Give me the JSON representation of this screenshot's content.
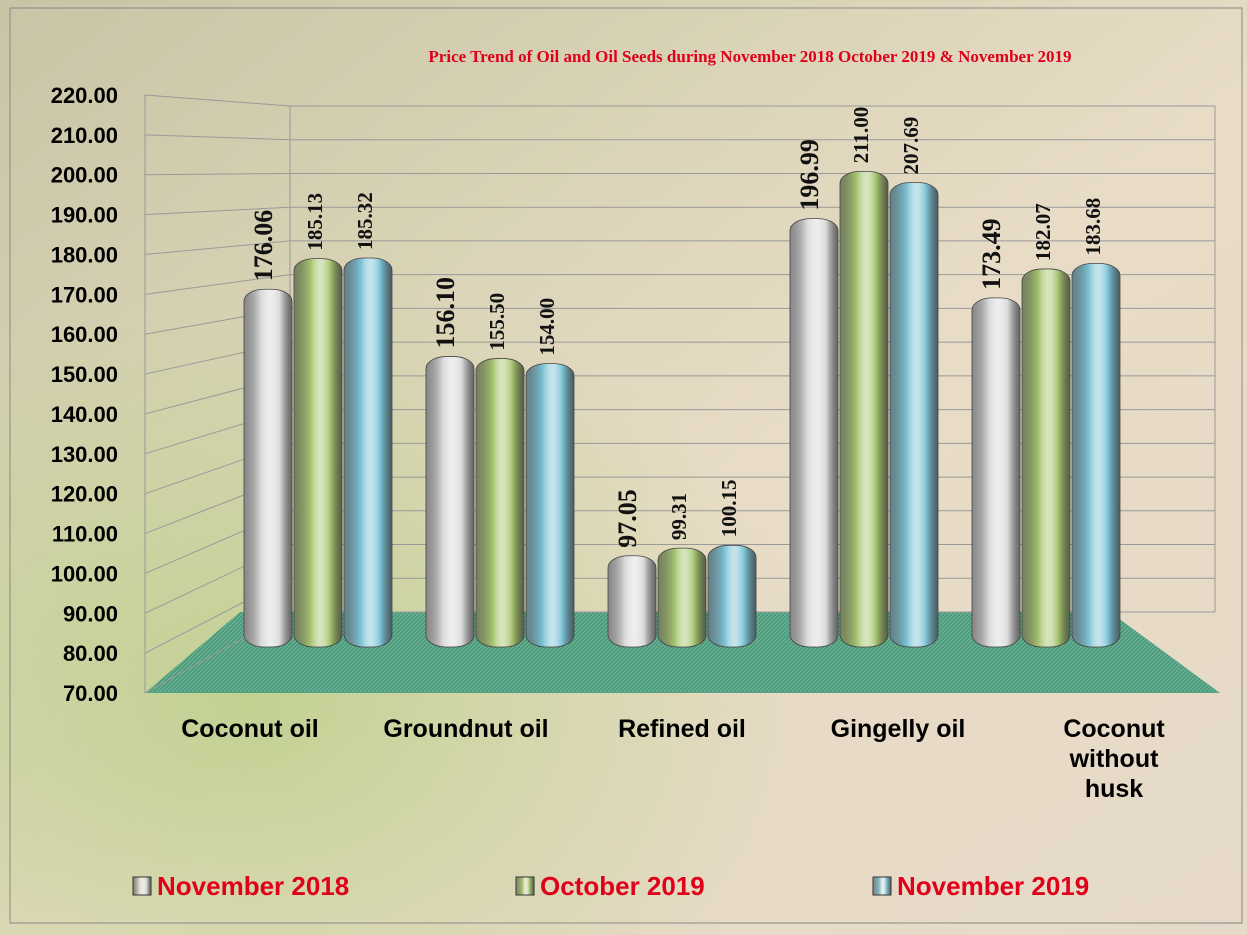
{
  "chart_data": {
    "type": "bar",
    "title": "Price Trend of Oil and Oil Seeds during  November  2018  October 2019 &  November 2019",
    "categories": [
      "Coconut oil",
      "Groundnut oil",
      "Refined oil",
      "Gingelly oil",
      "Coconut without husk"
    ],
    "series": [
      {
        "name": "November 2018",
        "color": "#d8d8d8",
        "values": [
          176.06,
          156.1,
          97.05,
          196.99,
          173.49
        ],
        "value_labels": [
          "176.06",
          "156.10",
          "97.05",
          "196.99",
          "173.49"
        ]
      },
      {
        "name": "October 2019",
        "color": "#a6c46e",
        "values": [
          185.13,
          155.5,
          99.31,
          211.0,
          182.07
        ],
        "value_labels": [
          "185.13",
          "155.50",
          "99.31",
          "211.00",
          "182.07"
        ]
      },
      {
        "name": "November 2019",
        "color": "#7cc3d6",
        "values": [
          185.32,
          154.0,
          100.15,
          207.69,
          183.68
        ],
        "value_labels": [
          "185.32",
          "154.00",
          "100.15",
          "207.69",
          "183.68"
        ]
      }
    ],
    "ylim": [
      70,
      220
    ],
    "yticks": [
      {
        "value": 70,
        "label": "70.00"
      },
      {
        "value": 80,
        "label": "80.00"
      },
      {
        "value": 90,
        "label": "90.00"
      },
      {
        "value": 100,
        "label": "100.00"
      },
      {
        "value": 110,
        "label": "110.00"
      },
      {
        "value": 120,
        "label": "120.00"
      },
      {
        "value": 130,
        "label": "130.00"
      },
      {
        "value": 140,
        "label": "140.00"
      },
      {
        "value": 150,
        "label": "150.00"
      },
      {
        "value": 160,
        "label": "160.00"
      },
      {
        "value": 170,
        "label": "170.00"
      },
      {
        "value": 180,
        "label": "180.00"
      },
      {
        "value": 190,
        "label": "190.00"
      },
      {
        "value": 200,
        "label": "200.00"
      },
      {
        "value": 210,
        "label": "210.00"
      },
      {
        "value": 220,
        "label": "220.00"
      }
    ],
    "grid": true,
    "legend": "bottom"
  }
}
